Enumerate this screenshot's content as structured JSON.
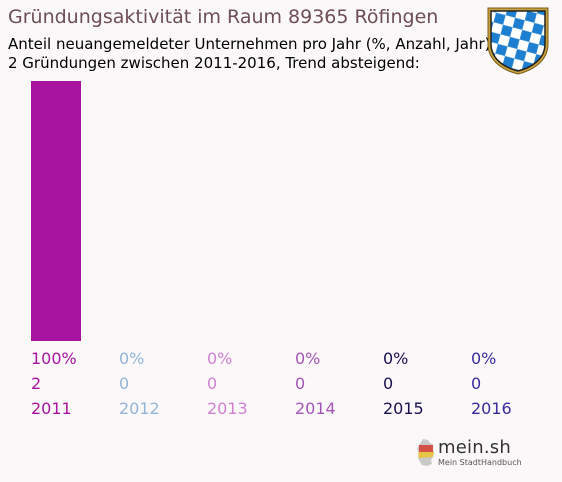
{
  "header": {
    "title": "Gründungsaktivität im Raum 89365 Röfingen",
    "subtitle_line1": "Anteil neuangemeldeter Unternehmen pro Jahr (%, Anzahl, Jahr)",
    "subtitle_line2": "2 Gründungen zwischen 2011-2016, Trend absteigend:"
  },
  "crest": {
    "icon": "bavarian-lozenge-crest-icon",
    "colors": [
      "#1e7fd0",
      "#ffffff",
      "#c8a23a"
    ]
  },
  "logo": {
    "brand": "mein.sh",
    "tagline": "Mein StadtHandbuch",
    "icon": "germany-map-icon"
  },
  "chart_data": {
    "type": "bar",
    "categories": [
      "2011",
      "2012",
      "2013",
      "2014",
      "2015",
      "2016"
    ],
    "series": [
      {
        "values": [
          100,
          0,
          0,
          0,
          0,
          0
        ]
      }
    ],
    "counts": [
      2,
      0,
      0,
      0,
      0,
      0
    ],
    "percent_labels": [
      "100%",
      "0%",
      "0%",
      "0%",
      "0%",
      "0%"
    ],
    "colors": [
      "#a8149f",
      "#93b4d6",
      "#d17fd2",
      "#a455b8",
      "#1a1050",
      "#3a2a9c"
    ],
    "ylim": [
      0,
      100
    ],
    "grid": false,
    "legend": "none"
  }
}
